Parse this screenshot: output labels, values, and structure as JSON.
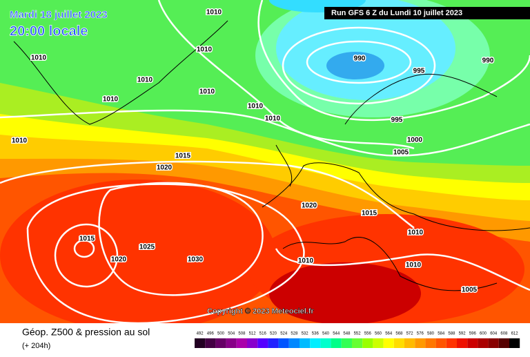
{
  "header": {
    "date": "Mardi 18 juillet 2023",
    "time": "20:00 locale",
    "run": "Run GFS 6 Z du Lundi 10 juillet 2023"
  },
  "copyright": "Copyright © 2023 Meteociel.fr",
  "legend": {
    "title": "Géop. Z500 & pression au sol",
    "subtitle": "(+ 204h)",
    "scale": [
      {
        "label": "492",
        "color": "#220022"
      },
      {
        "label": "496",
        "color": "#440044"
      },
      {
        "label": "500",
        "color": "#660066"
      },
      {
        "label": "504",
        "color": "#880088"
      },
      {
        "label": "508",
        "color": "#aa00aa"
      },
      {
        "label": "512",
        "color": "#8800cc"
      },
      {
        "label": "516",
        "color": "#5500ff"
      },
      {
        "label": "520",
        "color": "#2222ff"
      },
      {
        "label": "524",
        "color": "#0055ff"
      },
      {
        "label": "528",
        "color": "#0088ff"
      },
      {
        "label": "532",
        "color": "#00bbff"
      },
      {
        "label": "536",
        "color": "#00eeff"
      },
      {
        "label": "540",
        "color": "#00ffcc"
      },
      {
        "label": "544",
        "color": "#00ff88"
      },
      {
        "label": "548",
        "color": "#33ff55"
      },
      {
        "label": "552",
        "color": "#66ff33"
      },
      {
        "label": "556",
        "color": "#99ff00"
      },
      {
        "label": "560",
        "color": "#ccff00"
      },
      {
        "label": "564",
        "color": "#ffff00"
      },
      {
        "label": "568",
        "color": "#ffdd00"
      },
      {
        "label": "572",
        "color": "#ffbb00"
      },
      {
        "label": "576",
        "color": "#ff9900"
      },
      {
        "label": "580",
        "color": "#ff7700"
      },
      {
        "label": "584",
        "color": "#ff5500"
      },
      {
        "label": "588",
        "color": "#ff3300"
      },
      {
        "label": "592",
        "color": "#ee1100"
      },
      {
        "label": "596",
        "color": "#cc0000"
      },
      {
        "label": "600",
        "color": "#aa0000"
      },
      {
        "label": "604",
        "color": "#880000"
      },
      {
        "label": "608",
        "color": "#550000"
      },
      {
        "label": "612",
        "color": "#000000"
      }
    ]
  },
  "isobars": [
    "1010",
    "1010",
    "1010",
    "1010",
    "1010",
    "1010",
    "1010",
    "1010",
    "1010",
    "990",
    "995",
    "990",
    "995",
    "1000",
    "1005",
    "1015",
    "1020",
    "1020",
    "1015",
    "1010",
    "1015",
    "1025",
    "1020",
    "1030",
    "1010",
    "1010",
    "1005"
  ]
}
